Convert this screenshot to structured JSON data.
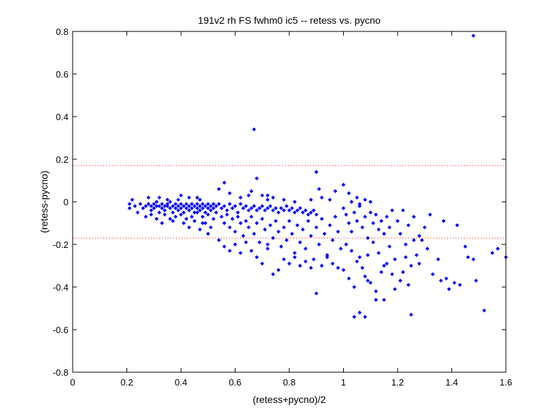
{
  "chart_data": {
    "type": "scatter",
    "title": "191v2 rh FS fwhm0 ic5 -- retess vs. pycno",
    "xlabel": "(retess+pycno)/2",
    "ylabel": "(retess-pycno)",
    "xlim": [
      0,
      1.6
    ],
    "ylim": [
      -0.8,
      0.8
    ],
    "x_ticks": [
      0,
      0.2,
      0.4,
      0.6,
      0.8,
      1,
      1.2,
      1.4,
      1.6
    ],
    "x_tick_labels": [
      "0",
      "0.2",
      "0.4",
      "0.6",
      "0.8",
      "1",
      "1.2",
      "1.4",
      "1.6"
    ],
    "y_ticks": [
      -0.8,
      -0.6,
      -0.4,
      -0.2,
      0,
      0.2,
      0.4,
      0.6,
      0.8
    ],
    "y_tick_labels": [
      "-0.8",
      "-0.6",
      "-0.4",
      "-0.2",
      "0",
      "0.2",
      "0.4",
      "0.6",
      "0.8"
    ],
    "grid": false,
    "marker_color": "#0000ff",
    "reference_line_color": "#ff0000",
    "reference_lines": [
      0.17,
      -0.17
    ],
    "series": [
      {
        "points": [
          [
            0.21,
            -0.01
          ],
          [
            0.21,
            -0.03
          ],
          [
            0.22,
            0.01
          ],
          [
            0.23,
            -0.02
          ],
          [
            0.24,
            -0.05
          ],
          [
            0.25,
            -0.01
          ],
          [
            0.26,
            -0.03
          ],
          [
            0.27,
            -0.02
          ],
          [
            0.27,
            -0.07
          ],
          [
            0.28,
            -0.01
          ],
          [
            0.29,
            -0.02
          ],
          [
            0.29,
            -0.04
          ],
          [
            0.3,
            -0.01
          ],
          [
            0.3,
            -0.03
          ],
          [
            0.31,
            -0.02
          ],
          [
            0.31,
            0.0
          ],
          [
            0.32,
            -0.02
          ],
          [
            0.32,
            -0.05
          ],
          [
            0.33,
            -0.01
          ],
          [
            0.33,
            -0.03
          ],
          [
            0.34,
            -0.02
          ],
          [
            0.34,
            -0.04
          ],
          [
            0.35,
            -0.01
          ],
          [
            0.35,
            -0.02
          ],
          [
            0.36,
            -0.03
          ],
          [
            0.36,
            0.0
          ],
          [
            0.37,
            -0.02
          ],
          [
            0.37,
            -0.05
          ],
          [
            0.38,
            -0.01
          ],
          [
            0.38,
            -0.03
          ],
          [
            0.39,
            -0.02
          ],
          [
            0.39,
            -0.04
          ],
          [
            0.4,
            -0.01
          ],
          [
            0.4,
            -0.03
          ],
          [
            0.41,
            -0.02
          ],
          [
            0.41,
            -0.05
          ],
          [
            0.42,
            -0.01
          ],
          [
            0.42,
            -0.03
          ],
          [
            0.43,
            -0.02
          ],
          [
            0.43,
            -0.04
          ],
          [
            0.44,
            -0.01
          ],
          [
            0.44,
            -0.03
          ],
          [
            0.45,
            -0.02
          ],
          [
            0.45,
            -0.05
          ],
          [
            0.46,
            -0.01
          ],
          [
            0.46,
            -0.03
          ],
          [
            0.47,
            -0.02
          ],
          [
            0.47,
            -0.04
          ],
          [
            0.48,
            -0.01
          ],
          [
            0.48,
            -0.03
          ],
          [
            0.49,
            -0.02
          ],
          [
            0.49,
            -0.05
          ],
          [
            0.5,
            -0.01
          ],
          [
            0.5,
            -0.03
          ],
          [
            0.51,
            -0.02
          ],
          [
            0.51,
            -0.04
          ],
          [
            0.52,
            -0.03
          ],
          [
            0.52,
            -0.01
          ],
          [
            0.53,
            -0.02
          ],
          [
            0.53,
            -0.05
          ],
          [
            0.34,
            -0.06
          ],
          [
            0.36,
            -0.08
          ],
          [
            0.38,
            -0.07
          ],
          [
            0.4,
            -0.06
          ],
          [
            0.42,
            -0.08
          ],
          [
            0.44,
            -0.07
          ],
          [
            0.46,
            -0.05
          ],
          [
            0.48,
            -0.07
          ],
          [
            0.5,
            -0.06
          ],
          [
            0.33,
            -0.1
          ],
          [
            0.37,
            -0.09
          ],
          [
            0.41,
            -0.1
          ],
          [
            0.45,
            -0.09
          ],
          [
            0.49,
            -0.1
          ],
          [
            0.31,
            -0.08
          ],
          [
            0.35,
            0.01
          ],
          [
            0.39,
            0.01
          ],
          [
            0.43,
            0.02
          ],
          [
            0.47,
            0.01
          ],
          [
            0.28,
            0.02
          ],
          [
            0.32,
            0.02
          ],
          [
            0.4,
            0.03
          ],
          [
            0.46,
            0.02
          ],
          [
            0.29,
            -0.06
          ],
          [
            0.43,
            -0.12
          ],
          [
            0.47,
            -0.13
          ],
          [
            0.52,
            -0.08
          ],
          [
            0.51,
            -0.12
          ],
          [
            0.5,
            -0.15
          ],
          [
            0.48,
            -0.1
          ],
          [
            0.54,
            -0.01
          ],
          [
            0.55,
            -0.03
          ],
          [
            0.56,
            -0.02
          ],
          [
            0.57,
            -0.04
          ],
          [
            0.58,
            -0.01
          ],
          [
            0.59,
            -0.03
          ],
          [
            0.6,
            -0.02
          ],
          [
            0.61,
            -0.05
          ],
          [
            0.62,
            -0.01
          ],
          [
            0.63,
            -0.03
          ],
          [
            0.64,
            -0.02
          ],
          [
            0.65,
            -0.04
          ],
          [
            0.66,
            -0.03
          ],
          [
            0.67,
            -0.02
          ],
          [
            0.68,
            -0.04
          ],
          [
            0.69,
            -0.03
          ],
          [
            0.7,
            -0.02
          ],
          [
            0.71,
            -0.04
          ],
          [
            0.72,
            -0.03
          ],
          [
            0.73,
            -0.02
          ],
          [
            0.74,
            -0.04
          ],
          [
            0.75,
            -0.03
          ],
          [
            0.76,
            -0.05
          ],
          [
            0.77,
            -0.03
          ],
          [
            0.78,
            -0.04
          ],
          [
            0.79,
            -0.02
          ],
          [
            0.8,
            -0.04
          ],
          [
            0.81,
            -0.03
          ],
          [
            0.82,
            -0.05
          ],
          [
            0.83,
            -0.04
          ],
          [
            0.84,
            -0.03
          ],
          [
            0.85,
            -0.05
          ],
          [
            0.86,
            -0.04
          ],
          [
            0.87,
            -0.06
          ],
          [
            0.88,
            -0.05
          ],
          [
            0.89,
            -0.04
          ],
          [
            0.9,
            -0.06
          ],
          [
            0.55,
            -0.07
          ],
          [
            0.56,
            -0.1
          ],
          [
            0.57,
            -0.06
          ],
          [
            0.58,
            -0.12
          ],
          [
            0.59,
            -0.08
          ],
          [
            0.6,
            -0.14
          ],
          [
            0.61,
            -0.07
          ],
          [
            0.62,
            -0.1
          ],
          [
            0.63,
            -0.16
          ],
          [
            0.64,
            -0.09
          ],
          [
            0.65,
            -0.12
          ],
          [
            0.66,
            -0.07
          ],
          [
            0.67,
            -0.15
          ],
          [
            0.68,
            -0.1
          ],
          [
            0.69,
            -0.19
          ],
          [
            0.7,
            -0.08
          ],
          [
            0.71,
            -0.13
          ],
          [
            0.72,
            -0.22
          ],
          [
            0.73,
            -0.11
          ],
          [
            0.74,
            -0.17
          ],
          [
            0.75,
            -0.09
          ],
          [
            0.76,
            -0.14
          ],
          [
            0.77,
            -0.21
          ],
          [
            0.78,
            -0.12
          ],
          [
            0.79,
            -0.18
          ],
          [
            0.8,
            -0.09
          ],
          [
            0.81,
            -0.15
          ],
          [
            0.82,
            -0.24
          ],
          [
            0.83,
            -0.11
          ],
          [
            0.84,
            -0.19
          ],
          [
            0.85,
            -0.13
          ],
          [
            0.86,
            -0.22
          ],
          [
            0.87,
            -0.09
          ],
          [
            0.88,
            -0.16
          ],
          [
            0.89,
            -0.27
          ],
          [
            0.9,
            -0.12
          ],
          [
            0.91,
            -0.2
          ],
          [
            0.92,
            -0.08
          ],
          [
            0.93,
            -0.15
          ],
          [
            0.94,
            -0.25
          ],
          [
            0.95,
            -0.11
          ],
          [
            0.96,
            -0.18
          ],
          [
            0.97,
            -0.07
          ],
          [
            0.98,
            -0.14
          ],
          [
            0.99,
            -0.22
          ],
          [
            0.54,
            -0.18
          ],
          [
            0.56,
            -0.21
          ],
          [
            0.58,
            -0.23
          ],
          [
            0.6,
            -0.2
          ],
          [
            0.62,
            -0.24
          ],
          [
            0.64,
            -0.19
          ],
          [
            0.66,
            -0.23
          ],
          [
            0.68,
            -0.26
          ],
          [
            0.7,
            -0.29
          ],
          [
            0.72,
            -0.2
          ],
          [
            0.74,
            -0.34
          ],
          [
            0.76,
            -0.32
          ],
          [
            0.78,
            -0.27
          ],
          [
            0.8,
            -0.29
          ],
          [
            0.82,
            -0.26
          ],
          [
            0.84,
            -0.3
          ],
          [
            0.86,
            -0.28
          ],
          [
            0.88,
            -0.31
          ],
          [
            0.9,
            -0.43
          ],
          [
            0.92,
            -0.3
          ],
          [
            0.94,
            -0.26
          ],
          [
            0.96,
            -0.29
          ],
          [
            0.98,
            -0.31
          ],
          [
            0.62,
            0.02
          ],
          [
            0.65,
            0.03
          ],
          [
            0.58,
            0.04
          ],
          [
            0.66,
            0.05
          ],
          [
            0.7,
            0.03
          ],
          [
            0.72,
            0.01
          ],
          [
            0.74,
            0.02
          ],
          [
            0.78,
            0.01
          ],
          [
            0.82,
            0.0
          ],
          [
            0.88,
            0.01
          ],
          [
            0.92,
            0.02
          ],
          [
            0.95,
            0.01
          ],
          [
            0.97,
            0.05
          ],
          [
            1.0,
            0.08
          ],
          [
            0.91,
            0.06
          ],
          [
            0.72,
            0.03
          ],
          [
            0.56,
            0.09
          ],
          [
            0.54,
            0.06
          ],
          [
            0.68,
            0.11
          ],
          [
            0.9,
            0.14
          ],
          [
            0.67,
            0.34
          ],
          [
            1.48,
            0.78
          ],
          [
            1.0,
            -0.03
          ],
          [
            1.01,
            -0.06
          ],
          [
            1.02,
            -0.1
          ],
          [
            1.03,
            -0.14
          ],
          [
            1.04,
            -0.05
          ],
          [
            1.05,
            -0.09
          ],
          [
            1.06,
            -0.02
          ],
          [
            1.07,
            -0.12
          ],
          [
            1.08,
            -0.07
          ],
          [
            1.09,
            -0.17
          ],
          [
            1.1,
            -0.05
          ],
          [
            1.11,
            -0.1
          ],
          [
            1.12,
            -0.06
          ],
          [
            1.13,
            -0.13
          ],
          [
            1.14,
            -0.09
          ],
          [
            1.15,
            -0.15
          ],
          [
            1.16,
            -0.07
          ],
          [
            1.17,
            -0.12
          ],
          [
            1.18,
            -0.04
          ],
          [
            1.01,
            -0.2
          ],
          [
            1.03,
            -0.23
          ],
          [
            1.05,
            -0.28
          ],
          [
            1.07,
            -0.31
          ],
          [
            1.09,
            -0.25
          ],
          [
            1.11,
            -0.19
          ],
          [
            1.13,
            -0.24
          ],
          [
            1.15,
            -0.3
          ],
          [
            1.17,
            -0.21
          ],
          [
            1.19,
            -0.27
          ],
          [
            1.0,
            -0.32
          ],
          [
            1.02,
            -0.36
          ],
          [
            1.04,
            -0.4
          ],
          [
            1.06,
            -0.26
          ],
          [
            1.08,
            -0.35
          ],
          [
            1.1,
            -0.38
          ],
          [
            1.12,
            -0.42
          ],
          [
            1.14,
            -0.33
          ],
          [
            1.16,
            -0.29
          ],
          [
            1.18,
            -0.34
          ],
          [
            1.02,
            0.04
          ],
          [
            1.05,
            0.02
          ],
          [
            1.08,
            0.01
          ],
          [
            1.1,
            0.0
          ],
          [
            1.03,
            0.0
          ],
          [
            1.06,
            -0.01
          ],
          [
            1.04,
            -0.54
          ],
          [
            1.06,
            -0.52
          ],
          [
            1.08,
            -0.54
          ],
          [
            1.12,
            -0.46
          ],
          [
            1.15,
            -0.46
          ],
          [
            1.09,
            -0.37
          ],
          [
            1.2,
            -0.09
          ],
          [
            1.21,
            -0.15
          ],
          [
            1.22,
            -0.04
          ],
          [
            1.23,
            -0.2
          ],
          [
            1.24,
            -0.11
          ],
          [
            1.25,
            -0.3
          ],
          [
            1.26,
            -0.07
          ],
          [
            1.27,
            -0.25
          ],
          [
            1.28,
            -0.16
          ],
          [
            1.3,
            -0.12
          ],
          [
            1.22,
            -0.33
          ],
          [
            1.24,
            -0.39
          ],
          [
            1.21,
            -0.37
          ],
          [
            1.19,
            -0.41
          ],
          [
            1.25,
            -0.53
          ],
          [
            1.28,
            -0.29
          ],
          [
            1.29,
            -0.18
          ],
          [
            1.31,
            -0.22
          ],
          [
            1.32,
            -0.06
          ],
          [
            1.35,
            -0.27
          ],
          [
            1.37,
            -0.09
          ],
          [
            1.38,
            -0.36
          ],
          [
            1.39,
            -0.41
          ],
          [
            1.41,
            -0.38
          ],
          [
            1.43,
            -0.39
          ],
          [
            1.36,
            -0.37
          ],
          [
            1.42,
            -0.11
          ],
          [
            1.45,
            -0.21
          ],
          [
            1.46,
            -0.26
          ],
          [
            1.48,
            -0.27
          ],
          [
            1.49,
            -0.37
          ],
          [
            1.52,
            -0.51
          ],
          [
            1.55,
            -0.24
          ],
          [
            1.57,
            -0.22
          ],
          [
            1.6,
            -0.26
          ],
          [
            1.33,
            -0.34
          ],
          [
            1.26,
            -0.18
          ],
          [
            1.23,
            -0.26
          ]
        ]
      }
    ]
  }
}
